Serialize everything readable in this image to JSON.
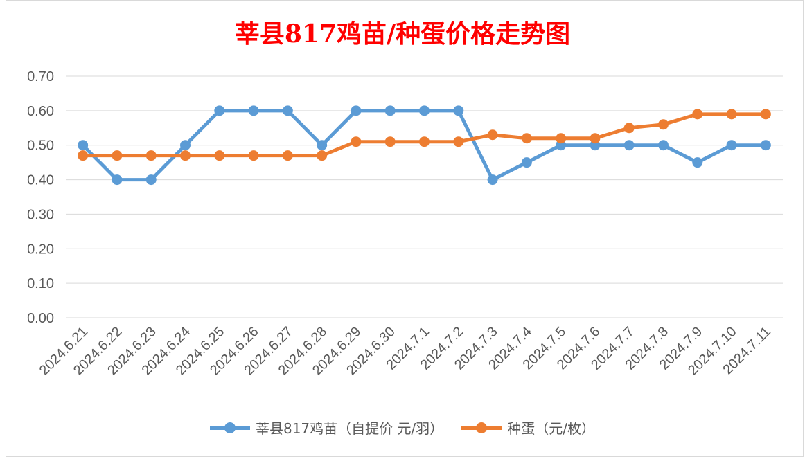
{
  "chart_data": {
    "type": "line",
    "title": "莘县817鸡苗/种蛋价格走势图",
    "categories": [
      "2024.6.21",
      "2024.6.22",
      "2024.6.23",
      "2024.6.24",
      "2024.6.25",
      "2024.6.26",
      "2024.6.27",
      "2024.6.28",
      "2024.6.29",
      "2024.6.30",
      "2024.7.1",
      "2024.7.2",
      "2024.7.3",
      "2024.7.4",
      "2024.7.5",
      "2024.7.6",
      "2024.7.7",
      "2024.7.8",
      "2024.7.9",
      "2024.7.10",
      "2024.7.11"
    ],
    "series": [
      {
        "name": "莘县817鸡苗（自提价 元/羽）",
        "color": "#5b9bd5",
        "values": [
          0.5,
          0.4,
          0.4,
          0.5,
          0.6,
          0.6,
          0.6,
          0.5,
          0.6,
          0.6,
          0.6,
          0.6,
          0.4,
          0.45,
          0.5,
          0.5,
          0.5,
          0.5,
          0.45,
          0.5,
          0.5
        ]
      },
      {
        "name": "种蛋（元/枚）",
        "color": "#ed7d31",
        "values": [
          0.47,
          0.47,
          0.47,
          0.47,
          0.47,
          0.47,
          0.47,
          0.47,
          0.51,
          0.51,
          0.51,
          0.51,
          0.53,
          0.52,
          0.52,
          0.52,
          0.55,
          0.56,
          0.59,
          0.59,
          0.59
        ]
      }
    ],
    "yticks": [
      "0.00",
      "0.10",
      "0.20",
      "0.30",
      "0.40",
      "0.50",
      "0.60",
      "0.70"
    ],
    "ylim": [
      0,
      0.7
    ],
    "grid": true,
    "legend_position": "bottom",
    "title_color": "#ff0000"
  }
}
